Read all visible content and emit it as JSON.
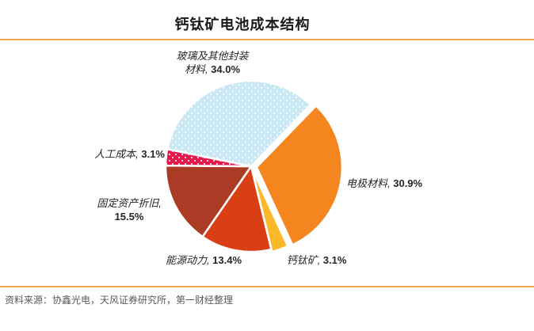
{
  "page": {
    "title": "钙钛矿电池成本结构"
  },
  "chart_data": {
    "type": "pie",
    "title": "钙钛矿电池成本结构",
    "start_angle_deg": 44,
    "legend_position": "none",
    "labels_style": "outside",
    "total": 100.0,
    "slices": [
      {
        "id": "electrode",
        "name": "电极材料",
        "value": 30.9,
        "color": "#F5861F",
        "pattern": "solid",
        "explode": 7,
        "label_text": "电极材料, ",
        "label_value": "30.9%"
      },
      {
        "id": "perovskite",
        "name": "钙钛矿",
        "value": 3.1,
        "color": "#FBB829",
        "pattern": "solid",
        "explode": 3,
        "label_text": "钙钛矿, ",
        "label_value": "3.1%"
      },
      {
        "id": "energy",
        "name": "能源动力",
        "value": 13.4,
        "color": "#D93E15",
        "pattern": "solid",
        "explode": 0,
        "label_text": "能源动力, ",
        "label_value": "13.4%"
      },
      {
        "id": "depreciation",
        "name": "固定资产折旧",
        "value": 15.5,
        "color": "#AC3B25",
        "pattern": "solid",
        "explode": 0,
        "label_line1": "固定资产折旧,",
        "label_line2_text": "",
        "label_line2_value": "15.5%"
      },
      {
        "id": "labor",
        "name": "人工成本",
        "value": 3.1,
        "color": "#E8174B",
        "pattern": "dots",
        "explode": 0,
        "label_text": "人工成本, ",
        "label_value": "3.1%"
      },
      {
        "id": "glass",
        "name": "玻璃及其他封装材料",
        "value": 34.0,
        "color": "#C9E8F4",
        "pattern": "dots",
        "explode": 0,
        "label_line1": "玻璃及其他封装",
        "label_line2_text": "材料, ",
        "label_line2_value": "34.0%"
      }
    ]
  },
  "footer": {
    "source": "资料来源：协鑫光电，天风证券研究所，第一财经整理"
  },
  "colors": {
    "rule": "#F0A14F",
    "title_text": "#1A1A1A",
    "label_text": "#262626",
    "source_text": "#5A5A5A",
    "slice_border": "#FFFFFF"
  }
}
